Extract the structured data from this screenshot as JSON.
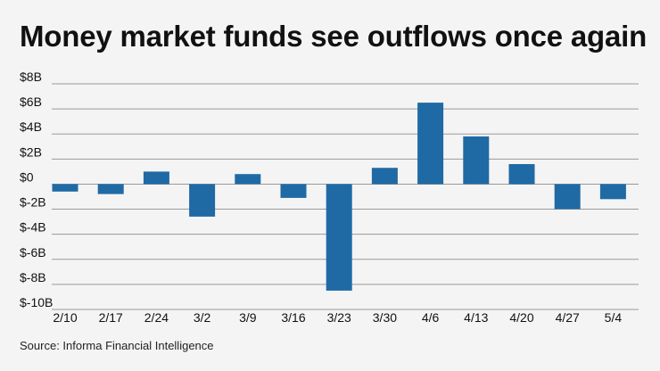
{
  "title": "Money market funds see outflows once again",
  "source": "Source: Informa Financial Intelligence",
  "colors": {
    "bar": "#1f6aa5",
    "grid": "#9a9a9a",
    "background": "#f4f4f4"
  },
  "chart_data": {
    "type": "bar",
    "title": "Money market funds see outflows once again",
    "xlabel": "",
    "ylabel": "",
    "ylim": [
      -10,
      8
    ],
    "grid": true,
    "yticks": [
      8,
      6,
      4,
      2,
      0,
      -2,
      -4,
      -6,
      -8,
      -10
    ],
    "ytick_labels": [
      "$8B",
      "$6B",
      "$4B",
      "$2B",
      "$0",
      "$-2B",
      "$-4B",
      "$-6B",
      "$-8B",
      "$-10B"
    ],
    "categories": [
      "2/10",
      "2/17",
      "2/24",
      "3/2",
      "3/9",
      "3/16",
      "3/23",
      "3/30",
      "4/6",
      "4/13",
      "4/20",
      "4/27",
      "5/4"
    ],
    "values": [
      -0.6,
      -0.8,
      1.0,
      -2.6,
      0.8,
      -1.1,
      -8.5,
      1.3,
      6.5,
      3.8,
      1.6,
      -2.0,
      -1.2
    ]
  }
}
